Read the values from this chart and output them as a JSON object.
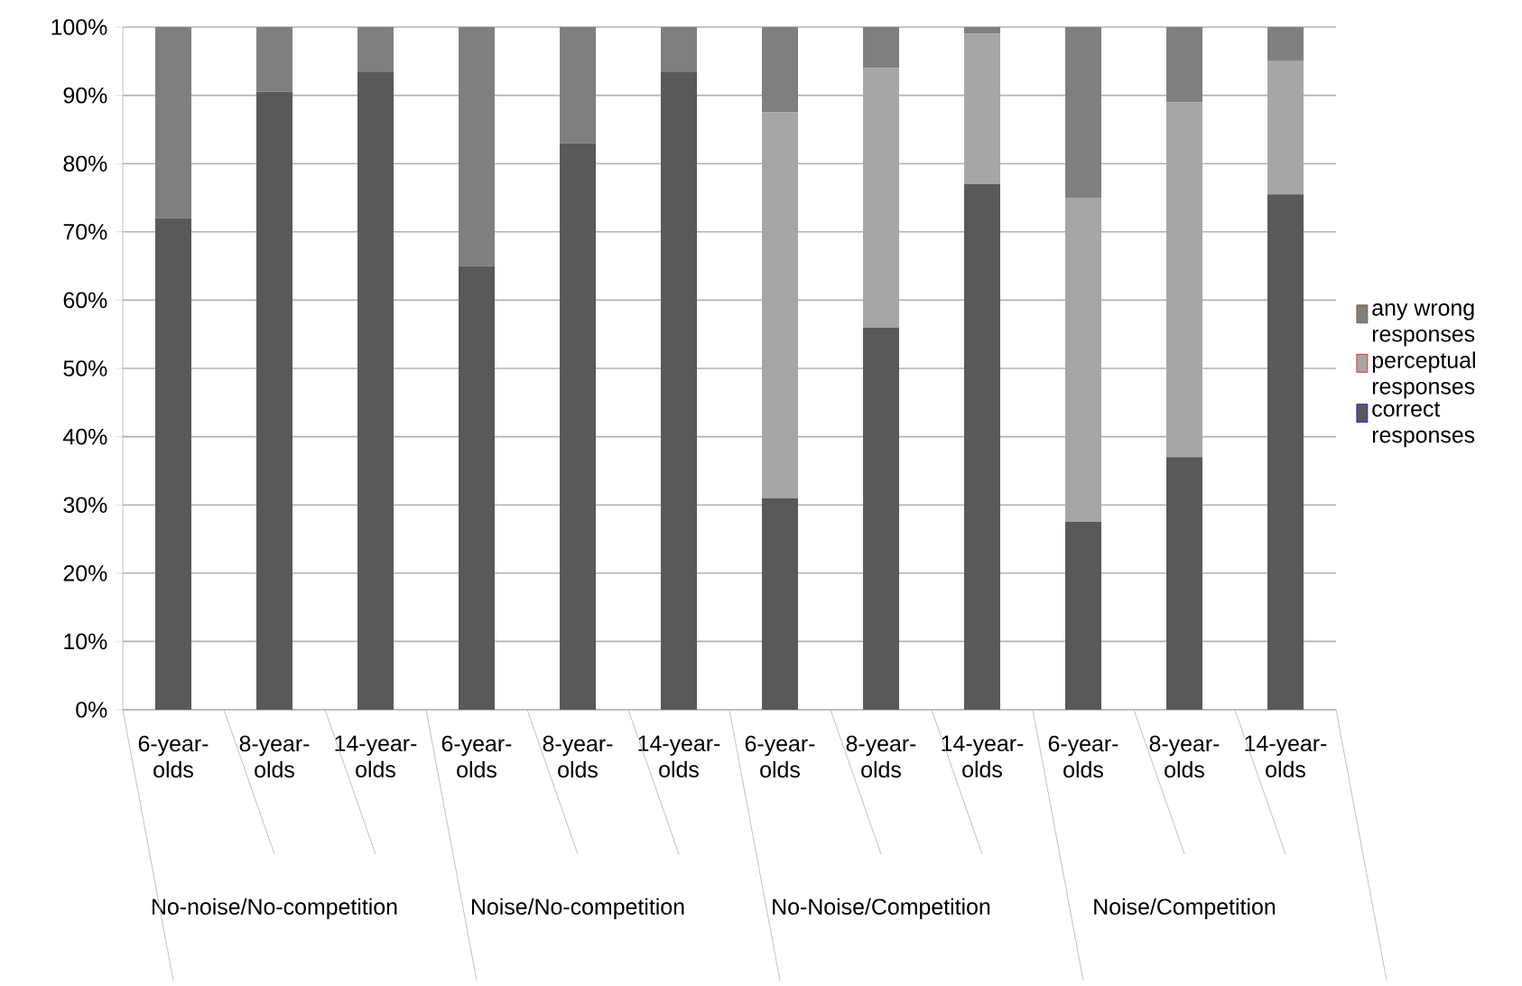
{
  "chart_data": {
    "type": "bar",
    "stacked": true,
    "categories": [
      "6-year-olds",
      "8-year-olds",
      "14-year-olds",
      "6-year-olds",
      "8-year-olds",
      "14-year-olds",
      "6-year-olds",
      "8-year-olds",
      "14-year-olds",
      "6-year-olds",
      "8-year-olds",
      "14-year-olds"
    ],
    "series": [
      {
        "name": "correct responses",
        "color": "#595959",
        "values": [
          72,
          90.5,
          93.5,
          65,
          83,
          93.5,
          31,
          56,
          77,
          27.5,
          37,
          75.5
        ]
      },
      {
        "name": "perceptual responses",
        "color": "#a6a6a6",
        "values": [
          0,
          0,
          0,
          0,
          0,
          0,
          56.5,
          38,
          22,
          47.5,
          52,
          19.5
        ]
      },
      {
        "name": "any wrong responses",
        "color": "#7f7f7f",
        "values": [
          28,
          9.5,
          6.5,
          35,
          17,
          6.5,
          12.5,
          6,
          1,
          25,
          11,
          5
        ]
      }
    ],
    "annotations": [
      "No-noise/No-competition",
      "Noise/No-competition",
      "No-Noise/Competition",
      "Noise/Competition"
    ],
    "ylim": [
      0,
      100
    ],
    "yticks": [
      {
        "value": 0,
        "label": "0%"
      },
      {
        "value": 10,
        "label": "10%"
      },
      {
        "value": 20,
        "label": "20%"
      },
      {
        "value": 30,
        "label": "30%"
      },
      {
        "value": 40,
        "label": "40%"
      },
      {
        "value": 50,
        "label": "50%"
      },
      {
        "value": 60,
        "label": "60%"
      },
      {
        "value": 70,
        "label": "70%"
      },
      {
        "value": 80,
        "label": "80%"
      },
      {
        "value": 90,
        "label": "90%"
      },
      {
        "value": 100,
        "label": "100%"
      }
    ],
    "grid": "y",
    "legend": "right"
  }
}
